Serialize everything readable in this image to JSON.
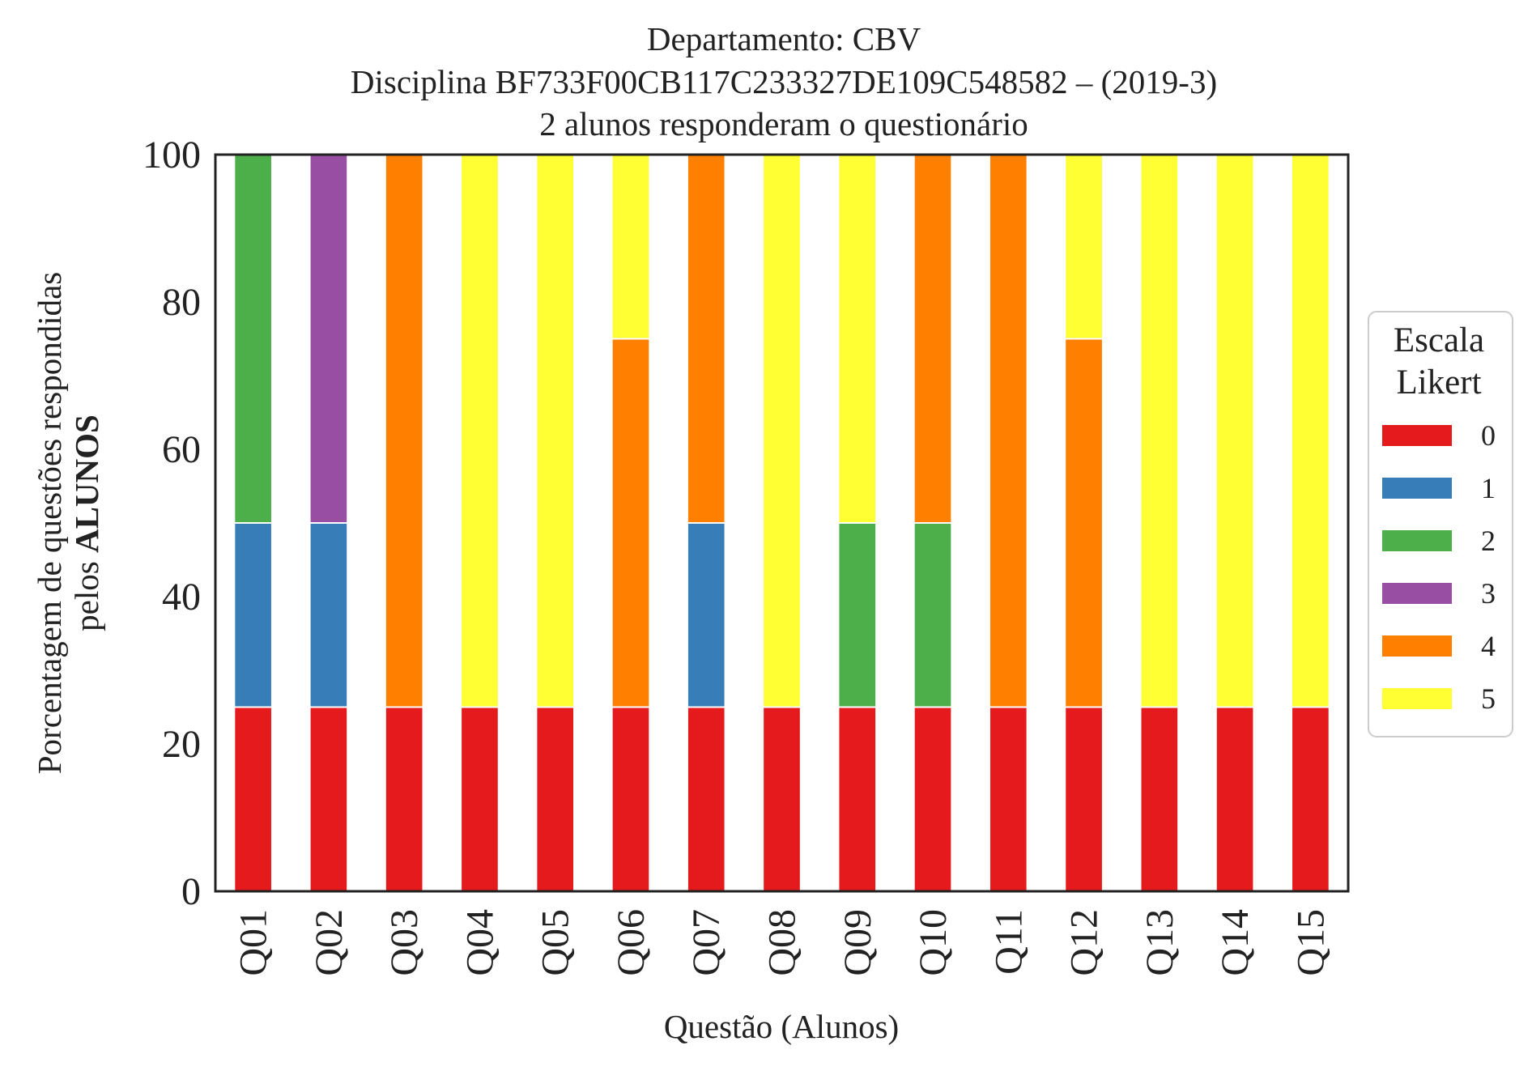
{
  "chart_data": {
    "type": "bar",
    "stacked": true,
    "title_lines": [
      "Departamento: CBV",
      "Disciplina BF733F00CB117C233327DE109C548582 – (2019-3)",
      "2 alunos responderam o questionário"
    ],
    "xlabel": "Questão (Alunos)",
    "ylabel_line1": "Porcentagem de questões respondidas",
    "ylabel_line2_prefix": "pelos ",
    "ylabel_line2_bold": "ALUNOS",
    "ylim": [
      0,
      100
    ],
    "yticks": [
      "0",
      "20",
      "40",
      "60",
      "80",
      "100"
    ],
    "categories": [
      "Q01",
      "Q02",
      "Q03",
      "Q04",
      "Q05",
      "Q06",
      "Q07",
      "Q08",
      "Q09",
      "Q10",
      "Q11",
      "Q12",
      "Q13",
      "Q14",
      "Q15"
    ],
    "legend_title_lines": [
      "Escala",
      "Likert"
    ],
    "legend_position": "center-right",
    "grid": false,
    "series": [
      {
        "name": "0",
        "color": "#e41a1c",
        "values": [
          25,
          25,
          25,
          25,
          25,
          25,
          25,
          25,
          25,
          25,
          25,
          25,
          25,
          25,
          25
        ]
      },
      {
        "name": "1",
        "color": "#377eb8",
        "values": [
          25,
          25,
          0,
          0,
          0,
          0,
          25,
          0,
          0,
          0,
          0,
          0,
          0,
          0,
          0
        ]
      },
      {
        "name": "2",
        "color": "#4daf4a",
        "values": [
          50,
          0,
          0,
          0,
          0,
          0,
          0,
          0,
          25,
          25,
          0,
          0,
          0,
          0,
          0
        ]
      },
      {
        "name": "3",
        "color": "#984ea3",
        "values": [
          0,
          50,
          0,
          0,
          0,
          0,
          0,
          0,
          0,
          0,
          0,
          0,
          0,
          0,
          0
        ]
      },
      {
        "name": "4",
        "color": "#ff7f00",
        "values": [
          0,
          0,
          75,
          0,
          0,
          50,
          50,
          0,
          0,
          50,
          75,
          50,
          0,
          0,
          0
        ]
      },
      {
        "name": "5",
        "color": "#ffff33",
        "values": [
          0,
          0,
          0,
          75,
          75,
          25,
          0,
          75,
          50,
          0,
          0,
          25,
          75,
          75,
          75
        ]
      }
    ]
  }
}
